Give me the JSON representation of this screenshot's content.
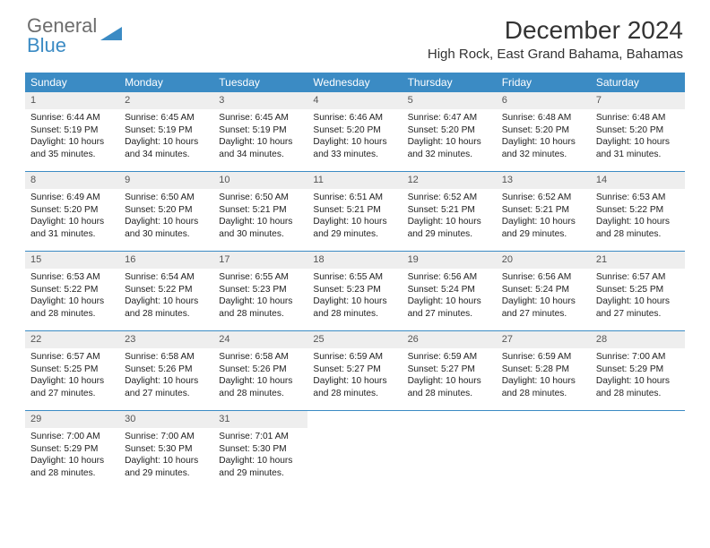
{
  "logo": {
    "text1": "General",
    "text2": "Blue",
    "icon_color": "#3b8bc4"
  },
  "title": "December 2024",
  "location": "High Rock, East Grand Bahama, Bahamas",
  "colors": {
    "header_bg": "#3b8bc4",
    "header_text": "#ffffff",
    "daynum_bg": "#eeeeee",
    "border": "#3b8bc4",
    "body_text": "#222222"
  },
  "day_names": [
    "Sunday",
    "Monday",
    "Tuesday",
    "Wednesday",
    "Thursday",
    "Friday",
    "Saturday"
  ],
  "weeks": [
    [
      {
        "n": "1",
        "sr": "6:44 AM",
        "ss": "5:19 PM",
        "dl": "10 hours and 35 minutes."
      },
      {
        "n": "2",
        "sr": "6:45 AM",
        "ss": "5:19 PM",
        "dl": "10 hours and 34 minutes."
      },
      {
        "n": "3",
        "sr": "6:45 AM",
        "ss": "5:19 PM",
        "dl": "10 hours and 34 minutes."
      },
      {
        "n": "4",
        "sr": "6:46 AM",
        "ss": "5:20 PM",
        "dl": "10 hours and 33 minutes."
      },
      {
        "n": "5",
        "sr": "6:47 AM",
        "ss": "5:20 PM",
        "dl": "10 hours and 32 minutes."
      },
      {
        "n": "6",
        "sr": "6:48 AM",
        "ss": "5:20 PM",
        "dl": "10 hours and 32 minutes."
      },
      {
        "n": "7",
        "sr": "6:48 AM",
        "ss": "5:20 PM",
        "dl": "10 hours and 31 minutes."
      }
    ],
    [
      {
        "n": "8",
        "sr": "6:49 AM",
        "ss": "5:20 PM",
        "dl": "10 hours and 31 minutes."
      },
      {
        "n": "9",
        "sr": "6:50 AM",
        "ss": "5:20 PM",
        "dl": "10 hours and 30 minutes."
      },
      {
        "n": "10",
        "sr": "6:50 AM",
        "ss": "5:21 PM",
        "dl": "10 hours and 30 minutes."
      },
      {
        "n": "11",
        "sr": "6:51 AM",
        "ss": "5:21 PM",
        "dl": "10 hours and 29 minutes."
      },
      {
        "n": "12",
        "sr": "6:52 AM",
        "ss": "5:21 PM",
        "dl": "10 hours and 29 minutes."
      },
      {
        "n": "13",
        "sr": "6:52 AM",
        "ss": "5:21 PM",
        "dl": "10 hours and 29 minutes."
      },
      {
        "n": "14",
        "sr": "6:53 AM",
        "ss": "5:22 PM",
        "dl": "10 hours and 28 minutes."
      }
    ],
    [
      {
        "n": "15",
        "sr": "6:53 AM",
        "ss": "5:22 PM",
        "dl": "10 hours and 28 minutes."
      },
      {
        "n": "16",
        "sr": "6:54 AM",
        "ss": "5:22 PM",
        "dl": "10 hours and 28 minutes."
      },
      {
        "n": "17",
        "sr": "6:55 AM",
        "ss": "5:23 PM",
        "dl": "10 hours and 28 minutes."
      },
      {
        "n": "18",
        "sr": "6:55 AM",
        "ss": "5:23 PM",
        "dl": "10 hours and 28 minutes."
      },
      {
        "n": "19",
        "sr": "6:56 AM",
        "ss": "5:24 PM",
        "dl": "10 hours and 27 minutes."
      },
      {
        "n": "20",
        "sr": "6:56 AM",
        "ss": "5:24 PM",
        "dl": "10 hours and 27 minutes."
      },
      {
        "n": "21",
        "sr": "6:57 AM",
        "ss": "5:25 PM",
        "dl": "10 hours and 27 minutes."
      }
    ],
    [
      {
        "n": "22",
        "sr": "6:57 AM",
        "ss": "5:25 PM",
        "dl": "10 hours and 27 minutes."
      },
      {
        "n": "23",
        "sr": "6:58 AM",
        "ss": "5:26 PM",
        "dl": "10 hours and 27 minutes."
      },
      {
        "n": "24",
        "sr": "6:58 AM",
        "ss": "5:26 PM",
        "dl": "10 hours and 28 minutes."
      },
      {
        "n": "25",
        "sr": "6:59 AM",
        "ss": "5:27 PM",
        "dl": "10 hours and 28 minutes."
      },
      {
        "n": "26",
        "sr": "6:59 AM",
        "ss": "5:27 PM",
        "dl": "10 hours and 28 minutes."
      },
      {
        "n": "27",
        "sr": "6:59 AM",
        "ss": "5:28 PM",
        "dl": "10 hours and 28 minutes."
      },
      {
        "n": "28",
        "sr": "7:00 AM",
        "ss": "5:29 PM",
        "dl": "10 hours and 28 minutes."
      }
    ],
    [
      {
        "n": "29",
        "sr": "7:00 AM",
        "ss": "5:29 PM",
        "dl": "10 hours and 28 minutes."
      },
      {
        "n": "30",
        "sr": "7:00 AM",
        "ss": "5:30 PM",
        "dl": "10 hours and 29 minutes."
      },
      {
        "n": "31",
        "sr": "7:01 AM",
        "ss": "5:30 PM",
        "dl": "10 hours and 29 minutes."
      },
      null,
      null,
      null,
      null
    ]
  ],
  "labels": {
    "sunrise": "Sunrise:",
    "sunset": "Sunset:",
    "daylight": "Daylight:"
  }
}
